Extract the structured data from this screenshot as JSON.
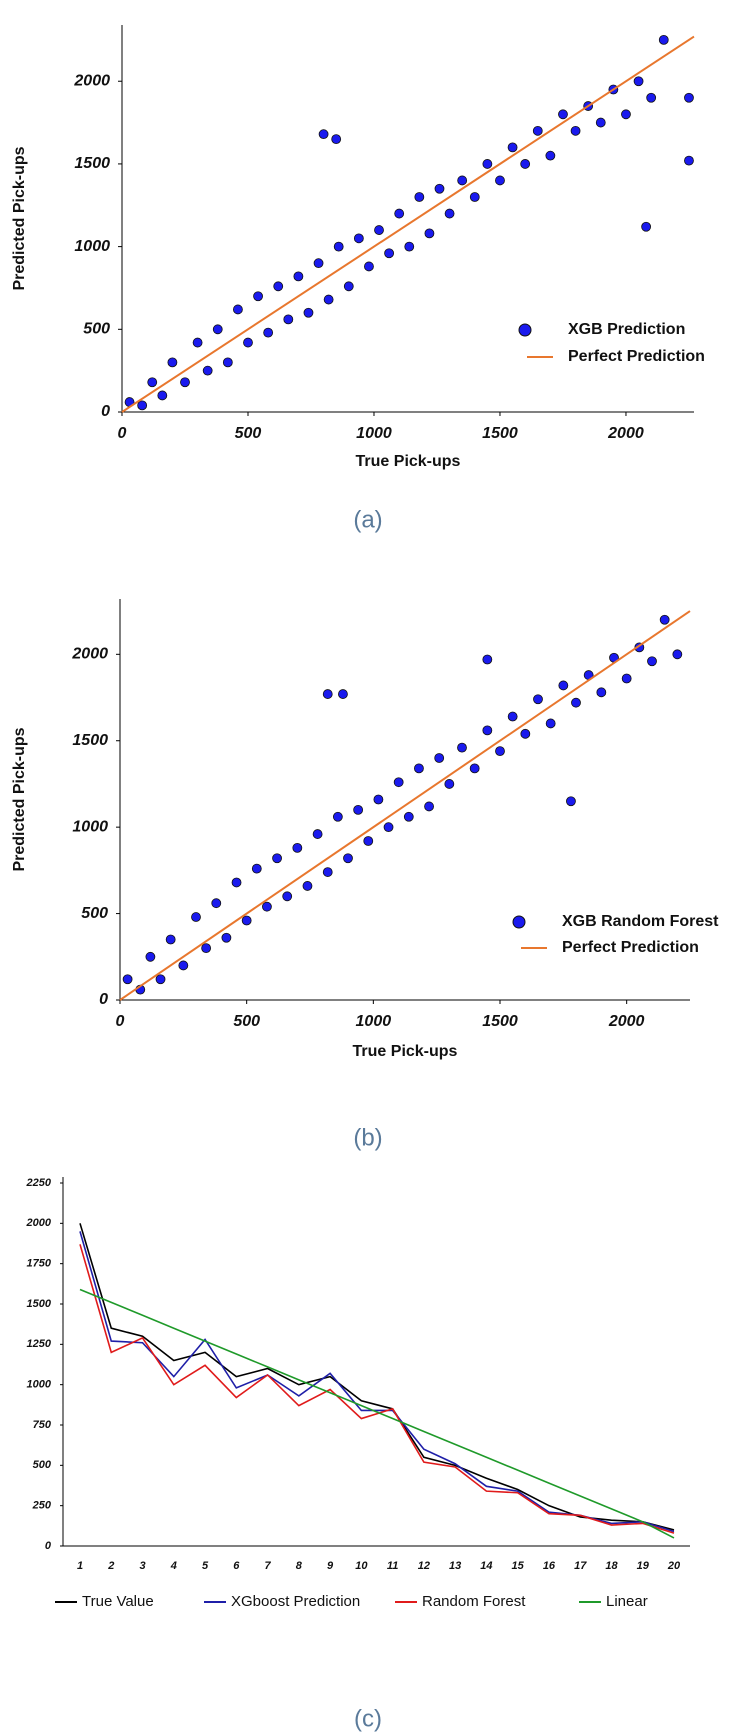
{
  "chart_data": [
    {
      "type": "scatter",
      "caption": "(a)",
      "xlabel": "True Pick-ups",
      "ylabel": "Predicted Pick-ups",
      "xlim": [
        0,
        2270
      ],
      "ylim": [
        0,
        2340
      ],
      "xticks": [
        0,
        500,
        1000,
        1500,
        2000
      ],
      "yticks": [
        0,
        500,
        1000,
        1500,
        2000
      ],
      "legend": "lower right",
      "series": [
        {
          "name": "XGB Prediction",
          "color": "#1a1aee",
          "x": [
            30,
            80,
            120,
            160,
            200,
            250,
            300,
            340,
            380,
            420,
            460,
            500,
            540,
            580,
            620,
            660,
            700,
            740,
            780,
            820,
            860,
            900,
            940,
            980,
            1020,
            1060,
            1100,
            1140,
            1180,
            1220,
            1260,
            1300,
            1350,
            1400,
            1450,
            1500,
            1550,
            1600,
            1650,
            1700,
            1750,
            1800,
            1850,
            1900,
            1950,
            2000,
            2050,
            2100,
            2150,
            2250,
            800,
            850,
            2080,
            2250
          ],
          "values": [
            60,
            40,
            180,
            100,
            300,
            180,
            420,
            250,
            500,
            300,
            620,
            420,
            700,
            480,
            760,
            560,
            820,
            600,
            900,
            680,
            1000,
            760,
            1050,
            880,
            1100,
            960,
            1200,
            1000,
            1300,
            1080,
            1350,
            1200,
            1400,
            1300,
            1500,
            1400,
            1600,
            1500,
            1700,
            1550,
            1800,
            1700,
            1850,
            1750,
            1950,
            1800,
            2000,
            1900,
            2250,
            1520,
            1680,
            1650,
            1120,
            1900
          ]
        }
      ],
      "line": {
        "name": "Perfect Prediction",
        "color": "#e8772e",
        "x": [
          0,
          2270
        ],
        "values": [
          0,
          2270
        ]
      }
    },
    {
      "type": "scatter",
      "caption": "(b)",
      "xlabel": "True Pick-ups",
      "ylabel": "Predicted Pick-ups",
      "xlim": [
        0,
        2250
      ],
      "ylim": [
        0,
        2320
      ],
      "xticks": [
        0,
        500,
        1000,
        1500,
        2000
      ],
      "yticks": [
        0,
        500,
        1000,
        1500,
        2000
      ],
      "legend": "lower right",
      "series": [
        {
          "name": "XGB Random Forest",
          "color": "#1a1aee",
          "x": [
            30,
            80,
            120,
            160,
            200,
            250,
            300,
            340,
            380,
            420,
            460,
            500,
            540,
            580,
            620,
            660,
            700,
            740,
            780,
            820,
            860,
            900,
            940,
            980,
            1020,
            1060,
            1100,
            1140,
            1180,
            1220,
            1260,
            1300,
            1350,
            1400,
            1450,
            1500,
            1550,
            1600,
            1650,
            1700,
            1750,
            1800,
            1850,
            1900,
            1950,
            2000,
            2050,
            2100,
            2150,
            2200,
            820,
            880,
            1450,
            1780
          ],
          "values": [
            120,
            60,
            250,
            120,
            350,
            200,
            480,
            300,
            560,
            360,
            680,
            460,
            760,
            540,
            820,
            600,
            880,
            660,
            960,
            740,
            1060,
            820,
            1100,
            920,
            1160,
            1000,
            1260,
            1060,
            1340,
            1120,
            1400,
            1250,
            1460,
            1340,
            1560,
            1440,
            1640,
            1540,
            1740,
            1600,
            1820,
            1720,
            1880,
            1780,
            1980,
            1860,
            2040,
            1960,
            2200,
            2000,
            1770,
            1770,
            1970,
            1150
          ]
        }
      ],
      "line": {
        "name": "Perfect Prediction",
        "color": "#e8772e",
        "x": [
          0,
          2250
        ],
        "values": [
          0,
          2250
        ]
      }
    },
    {
      "type": "line",
      "caption": "(c)",
      "categories": [
        "1",
        "2",
        "3",
        "4",
        "5",
        "6",
        "7",
        "8",
        "9",
        "10",
        "11",
        "12",
        "13",
        "14",
        "15",
        "16",
        "17",
        "18",
        "19",
        "20"
      ],
      "ylim": [
        0,
        2250
      ],
      "yticks": [
        0,
        250,
        500,
        750,
        1000,
        1250,
        1500,
        1750,
        2000,
        2250
      ],
      "legend": "bottom",
      "series": [
        {
          "name": "True Value",
          "color": "#000000",
          "values": [
            2000,
            1350,
            1300,
            1150,
            1200,
            1050,
            1100,
            1000,
            1050,
            900,
            850,
            550,
            500,
            420,
            350,
            250,
            180,
            160,
            150,
            100
          ]
        },
        {
          "name": "XGboost Prediction",
          "color": "#1f1fa8",
          "values": [
            1950,
            1270,
            1260,
            1050,
            1280,
            980,
            1060,
            930,
            1070,
            840,
            840,
            600,
            510,
            370,
            340,
            210,
            190,
            140,
            150,
            90
          ]
        },
        {
          "name": "Random Forest",
          "color": "#e01b1b",
          "values": [
            1870,
            1200,
            1290,
            1000,
            1120,
            920,
            1060,
            870,
            970,
            790,
            850,
            520,
            490,
            340,
            330,
            200,
            190,
            130,
            140,
            80
          ]
        },
        {
          "name": "Linear",
          "color": "#1f9a2a",
          "values": [
            1590,
            1510,
            1430,
            1350,
            1270,
            1190,
            1110,
            1030,
            950,
            870,
            790,
            710,
            630,
            550,
            470,
            390,
            310,
            230,
            150,
            50
          ]
        }
      ]
    }
  ]
}
